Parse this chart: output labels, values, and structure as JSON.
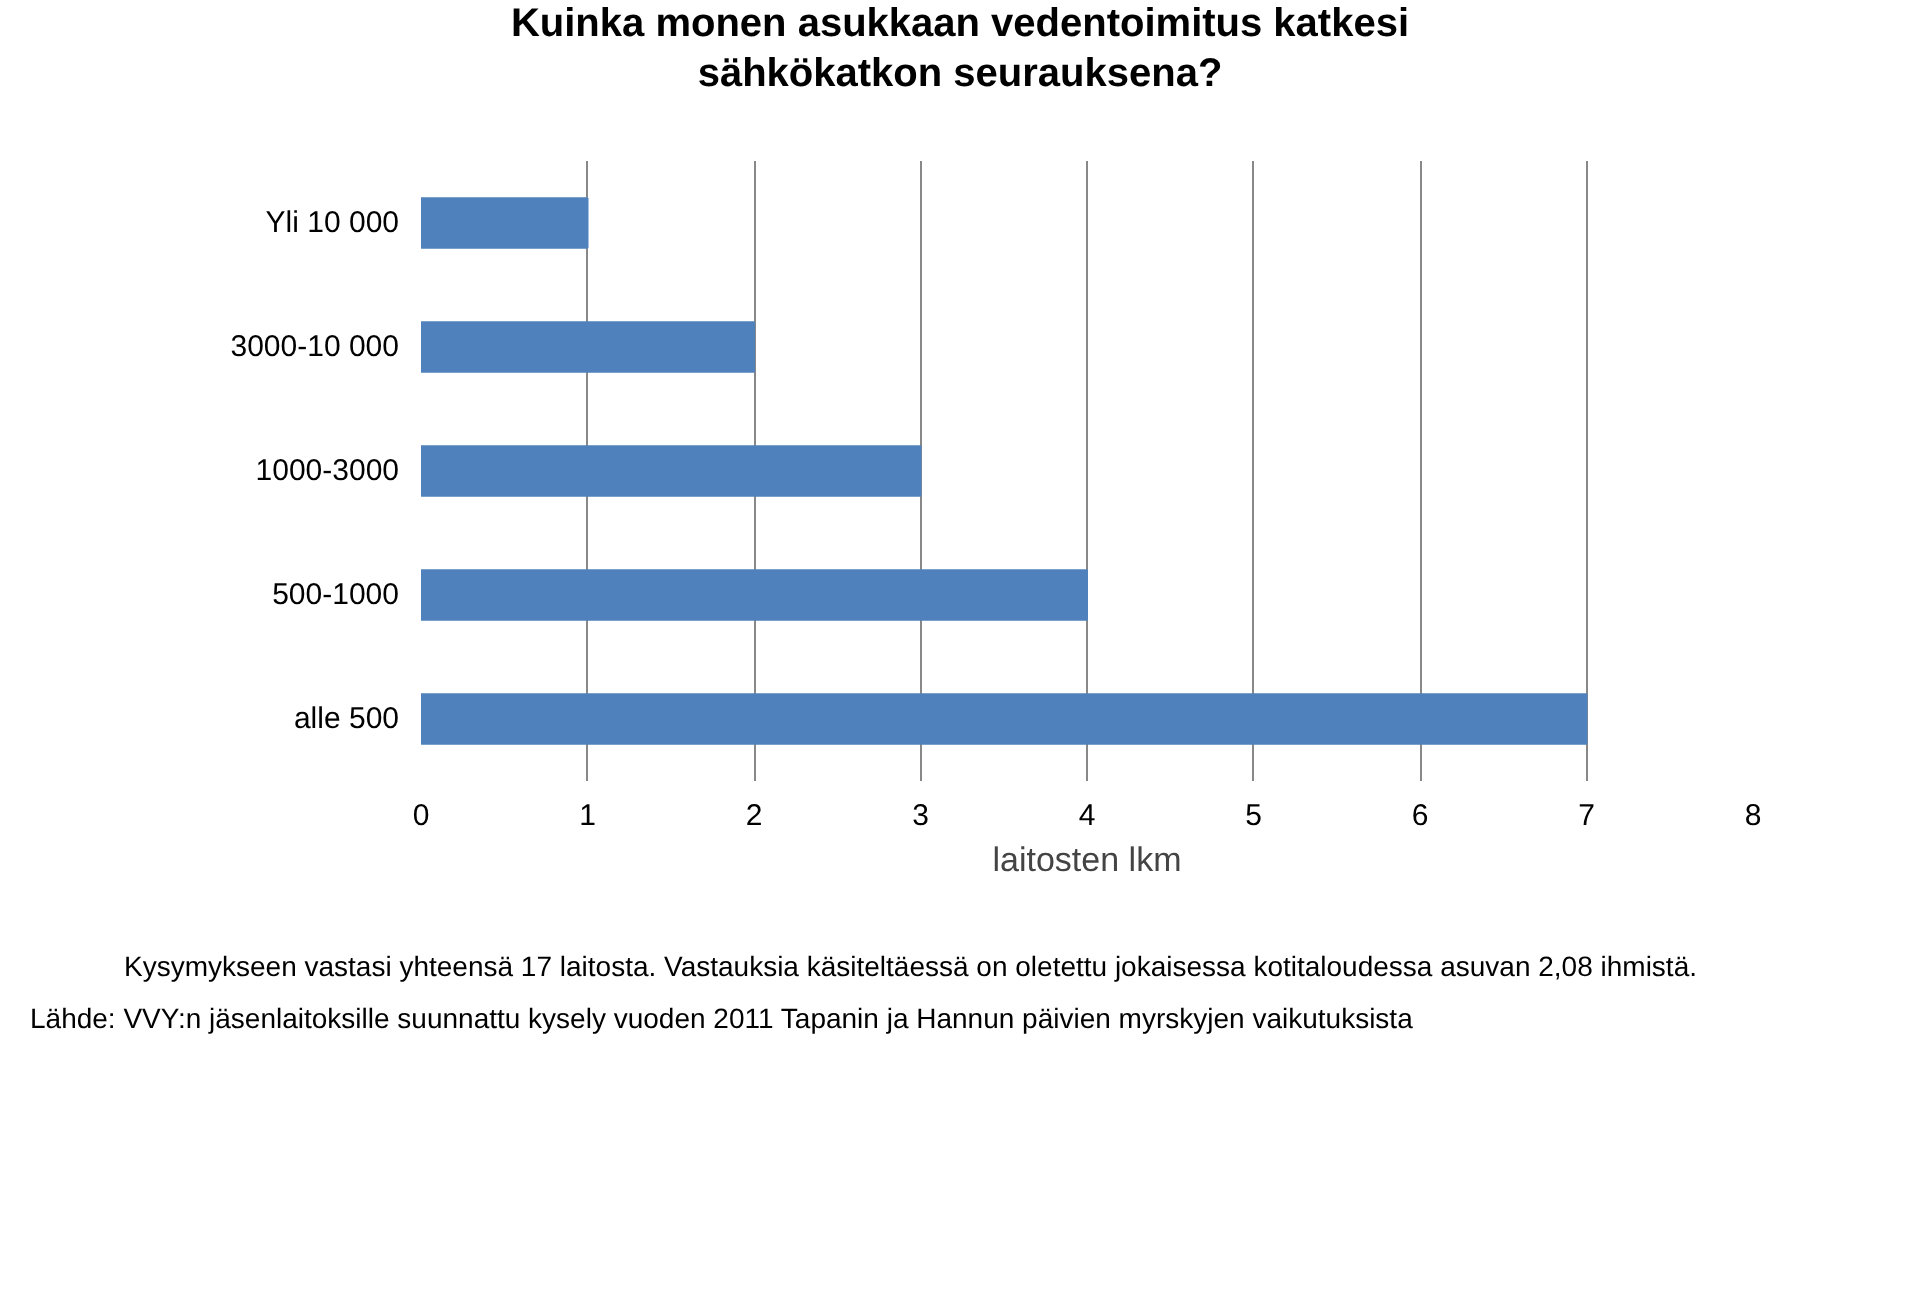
{
  "chart_data": {
    "type": "bar",
    "orientation": "horizontal",
    "title": "Kuinka monen asukkaan vedentoimitus katkesi sähkökatkon seurauksena?",
    "categories": [
      "Yli 10 000",
      "3000-10 000",
      "1000-3000",
      "500-1000",
      "alle 500"
    ],
    "values": [
      1,
      2,
      3,
      4,
      7
    ],
    "color": "#4f81bd",
    "xlabel": "laitosten lkm",
    "xlim": [
      0,
      8
    ],
    "xticks": [
      0,
      1,
      2,
      3,
      4,
      5,
      6,
      7,
      8
    ],
    "grid": "x",
    "annotations": [
      "Kysymykseen vastasi yhteensä 17 laitosta. Vastauksia käsiteltäessä on oletettu jokaisessa kotitaloudessa asuvan 2,08 ihmistä.",
      "Lähde: VVY:n jäsenlaitoksille suunnattu kysely vuoden 2011 Tapanin ja Hannun päivien myrskyjen vaikutuksista"
    ]
  }
}
